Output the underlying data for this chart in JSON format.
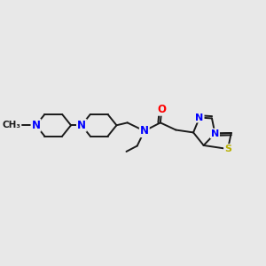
{
  "background_color": "#e8e8e8",
  "bond_color": "#1a1a1a",
  "bond_width": 1.4,
  "N_color": "#0000ff",
  "O_color": "#ff0000",
  "S_color": "#b8b000",
  "C_color": "#1a1a1a",
  "font_size": 8.5,
  "figsize": [
    3.0,
    3.0
  ],
  "dpi": 100,
  "xlim": [
    0,
    10
  ],
  "ylim": [
    0,
    10
  ]
}
